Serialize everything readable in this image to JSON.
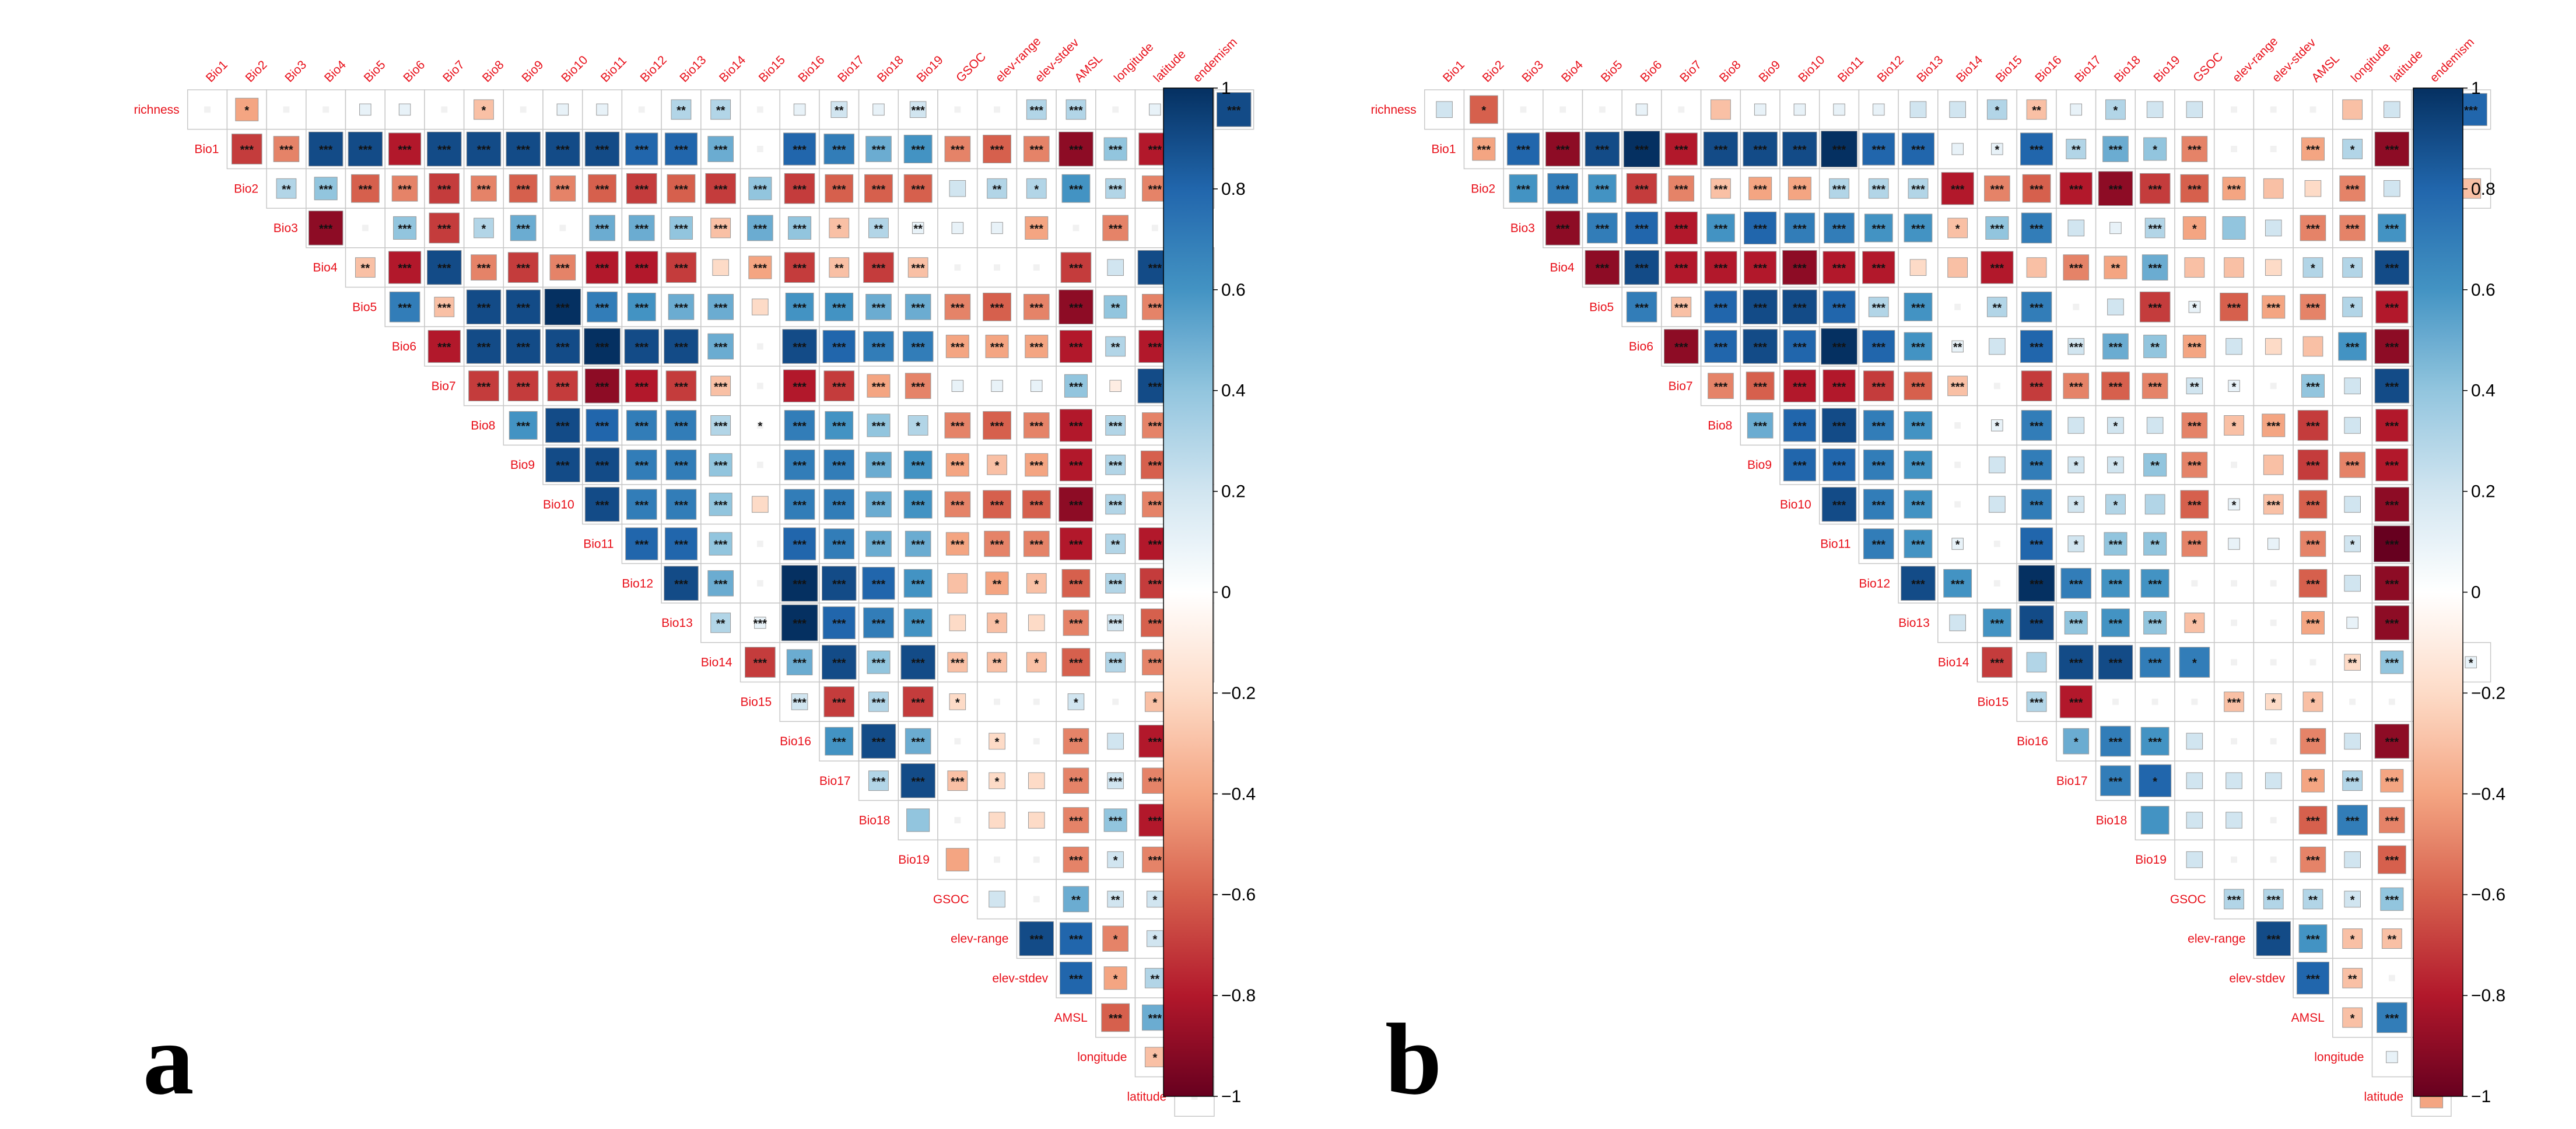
{
  "chart_data": [
    {
      "type": "heatmap",
      "panel_label": "a",
      "variables": [
        "richness",
        "Bio1",
        "Bio2",
        "Bio3",
        "Bio4",
        "Bio5",
        "Bio6",
        "Bio7",
        "Bio8",
        "Bio9",
        "Bio10",
        "Bio11",
        "Bio12",
        "Bio13",
        "Bio14",
        "Bio15",
        "Bio16",
        "Bio17",
        "Bio18",
        "Bio19",
        "GSOC",
        "elev-range",
        "elev-stdev",
        "AMSL",
        "longitude",
        "latitude",
        "endemism"
      ],
      "colorbar": {
        "min": -1,
        "max": 1,
        "ticks": [
          "1",
          "0.8",
          "0.6",
          "0.4",
          "0.2",
          "0",
          "−0.2",
          "−0.4",
          "−0.6",
          "−0.8",
          "−1"
        ]
      },
      "matrix": [
        "0.0 -0.4* 0.0 0.0 0.1 0.1 0.0 -0.3* 0.0 0.1 0.1 0.0 0.3** 0.3** 0.0 0.1 0.2** 0.1 0.2*** 0.0 0.0 0.3*** 0.3*** 0.0 0.1 0.1 0.9***",
        "-0.7*** -0.5*** 0.9*** 0.9*** -0.8*** 0.9*** 0.9*** 0.9*** 0.9*** 0.9*** 0.8*** 0.8*** 0.5*** 0.0 0.8*** 0.7*** 0.5*** 0.6*** -0.5*** -0.6*** -0.5*** -0.9*** 0.4*** -0.8*** 0.0",
        "0.3** 0.4*** -0.6*** -0.5*** -0.7*** -0.5*** -0.6*** -0.5*** -0.6*** -0.7*** -0.6*** -0.7*** 0.4*** -0.7*** -0.6*** -0.6*** -0.6*** 0.2 0.3** 0.3* 0.6*** 0.3*** -0.5*** -0.3*",
        "-0.9*** 0.0 0.4*** -0.7*** 0.3* 0.5*** 0.0 0.5*** 0.5*** 0.4*** -0.3*** 0.5*** 0.4*** -0.3* 0.3** 0.1** 0.1 0.1 -0.4*** 0.0 -0.5*** 0.0",
        "-0.3** -0.8*** 0.9*** -0.5*** -0.7*** -0.5*** -0.8*** -0.8*** -0.7*** -0.2 -0.4*** -0.7*** -0.3** -0.7*** -0.3*** 0.0 0.0 0.0 -0.7*** 0.2 0.9*** -0.2*",
        "0.7*** -0.3*** 0.9*** 0.9*** 1.0*** 0.7*** 0.6*** 0.5*** 0.5*** -0.2 0.6*** 0.6*** 0.5*** 0.5*** -0.5*** -0.6*** -0.5*** -0.9*** 0.4** -0.5*** 0.0",
        "-0.8*** 0.9*** 0.9*** 0.9*** 1.0*** 0.9*** 0.9*** 0.5*** 0.0 0.9*** 0.8*** 0.7*** 0.7*** -0.4*** -0.4*** -0.4*** -0.8*** 0.3** -0.8*** 0.0",
        "-0.7*** -0.7*** -0.7*** -0.9*** -0.8*** -0.7*** -0.3*** 0.0 -0.8*** -0.7*** -0.4*** -0.5*** 0.1 0.1 0.1 0.4*** -0.1 0.9*** -0.3**",
        "0.6*** 0.9*** 0.8*** 0.7*** 0.7*** 0.3*** 0.0* 0.7*** 0.6*** 0.4*** 0.3* -0.5*** -0.6*** -0.5*** -0.8*** 0.3*** -0.5*** 0.0",
        "0.9*** 0.9*** 0.7*** 0.7*** 0.4*** 0.0 0.7*** 0.7*** 0.5*** 0.6*** -0.4*** -0.3* -0.4*** -0.8*** 0.3*** -0.6*** 0.0",
        "0.9*** 0.7*** 0.7*** 0.4*** -0.2 0.7*** 0.7*** 0.5*** 0.6*** -0.5*** -0.6*** -0.6*** -0.9*** 0.3*** -0.5*** 0.0",
        "0.8*** 0.8*** 0.4*** 0.0 0.8*** 0.7*** 0.5*** 0.5*** -0.4*** -0.5*** -0.5*** -0.8*** 0.3** -0.8*** 0.0",
        "0.9*** 0.5*** 0.0 1.0*** 0.9*** 0.8*** 0.6*** -0.3 -0.4** -0.3* -0.6*** 0.3*** -0.7*** 0.9***",
        "0.3** 0.1*** 1.0*** 0.8*** 0.7*** 0.6*** -0.2 -0.3* -0.2 -0.5*** 0.2*** -0.6*** 0.9***",
        "-0.7*** 0.5*** 0.9*** 0.4*** 0.9*** -0.3*** -0.3** -0.3* -0.6*** 0.3*** -0.5*** 0.0",
        "0.2*** -0.7*** 0.3*** -0.7*** -0.2* 0.0 0.0 0.2* 0.0 -0.3*",
        "0.6*** 0.9*** 0.5*** 0.0 -0.2* 0.0 -0.5*** 0.2 -0.8*** 0.9***",
        "0.3*** 0.9*** -0.3*** -0.2* -0.2 -0.5*** 0.2*** -0.5*** 0.1",
        "0.4 0.0 -0.2 -0.2 -0.5*** 0.4*** -0.8*** 0.9***",
        "-0.4 0.0 0.0 -0.5*** 0.2* -0.5*** 0.0",
        "0.2 0.0 0.5** 0.2** 0.2* 0.0",
        "0.9*** 0.8*** -0.5* 0.2* 0.3***",
        "0.8*** -0.4* 0.3** 0.3***",
        "-0.6*** 0.5*** 0.0",
        "-0.3* 0.0",
        "0.0"
      ]
    },
    {
      "type": "heatmap",
      "panel_label": "b",
      "variables": [
        "richness",
        "Bio1",
        "Bio2",
        "Bio3",
        "Bio4",
        "Bio5",
        "Bio6",
        "Bio7",
        "Bio8",
        "Bio9",
        "Bio10",
        "Bio11",
        "Bio12",
        "Bio13",
        "Bio14",
        "Bio15",
        "Bio16",
        "Bio17",
        "Bio18",
        "Bio19",
        "GSOC",
        "elev-range",
        "elev-stdev",
        "AMSL",
        "longitude",
        "latitude",
        "endemism"
      ],
      "colorbar": {
        "min": -1,
        "max": 1,
        "ticks": [
          "1",
          "0.8",
          "0.6",
          "0.4",
          "0.2",
          "0",
          "−0.2",
          "−0.4",
          "−0.6",
          "−0.8",
          "−1"
        ]
      },
      "matrix": [
        "0.2 -0.6* 0.0 0.0 0.0 0.1 0.0 -0.3 0.1 0.1 0.1 0.1 0.2 0.2 0.3* -0.3** 0.1 0.3* 0.2 0.2 0.0 0.0 0.0 -0.3 0.2 -0.3 0.8***",
        "-0.4*** 0.8*** -0.9*** 0.9*** 1.0*** -0.8*** 0.9*** 0.9*** 0.9*** 1.0*** 0.8*** 0.8*** 0.1 0.1* 0.8*** 0.3** 0.5*** 0.4* -0.5*** 0.0 0.0 -0.4*** 0.3* -0.9*** 0.2",
        "0.6*** 0.7*** 0.6*** -0.7*** -0.5*** -0.3*** -0.4*** -0.4*** 0.3*** 0.3*** 0.3*** -0.8*** -0.5*** -0.6*** -0.8*** -0.9*** -0.7*** -0.6*** -0.4*** -0.3 -0.2 -0.5*** 0.2 0.6*** -0.3",
        "-0.9*** 0.7*** 0.8*** -0.8*** 0.6*** 0.8*** 0.7*** 0.7*** 0.6*** 0.6*** -0.3* 0.4*** 0.7*** 0.2 0.1 0.3*** -0.4* 0.4 0.2 -0.5*** -0.5*** 0.6*** -0.2",
        "-0.9*** 0.9*** -0.8*** -0.8*** -0.8*** -0.9*** -0.8*** -0.8*** -0.2 -0.3 -0.8*** -0.3 -0.5*** -0.4** 0.5*** -0.3 -0.3 -0.2 0.3* 0.3* 0.9*** -0.3",
        "0.7*** -0.3*** 0.8*** 0.9*** 0.9*** 0.8*** 0.3*** 0.6*** 0.0 0.3** 0.7*** 0.0 0.2 -0.7*** 0.1* -0.6*** -0.4*** -0.5*** 0.3* -0.8*** 0.2",
        "-0.9*** 0.8*** 0.9*** 0.8*** 1.0*** 0.8*** 0.6*** 0.1** 0.2 0.8*** 0.2*** 0.5*** 0.4** -0.4*** 0.2 -0.2 -0.3 0.6*** -0.9*** 0.2",
        "-0.5*** -0.6*** -0.8*** -0.8*** -0.7*** -0.6*** -0.3*** 0.0 -0.7*** -0.5*** -0.6*** -0.5*** 0.2** 0.1* 0.0 0.4*** 0.2 0.9*** -0.3",
        "0.5*** 0.8*** 0.9*** 0.7*** 0.6*** 0.0 0.1* 0.7*** 0.2 0.2* 0.2 -0.5*** -0.3* -0.4*** -0.7*** 0.2 -0.8*** 0.1",
        "0.8*** 0.8*** 0.7*** 0.6*** 0.0 0.2 0.7*** 0.2* 0.2* 0.4** -0.5*** 0.0 -0.3 -0.7*** -0.5*** -0.8*** 0.1",
        "0.9*** 0.7*** 0.6*** 0.0 0.2 0.7*** 0.2* 0.3* 0.3 -0.6*** 0.1* -0.3*** -0.6*** 0.2 -0.9*** 0.1",
        "0.7*** 0.6*** 0.1* 0.0 0.8*** 0.2* 0.4*** 0.4** -0.5*** 0.1 0.1 -0.5*** 0.2* -1.0*** 0.1",
        "0.9*** 0.6*** 0.0 1.0*** 0.7*** 0.6*** 0.6*** 0.0 0.0 0.0 -0.6*** 0.2 -0.9*** 0.6",
        "0.2 0.6*** 0.9*** 0.4*** 0.6*** 0.4*** -0.3* 0.0 0.0 -0.4*** 0.1 -0.9*** 0.1",
        "-0.7*** 0.3 0.9*** 0.9*** 0.7*** 0.7* 0.0 0.0 0.0 -0.2** 0.4*** -0.2** 0.1*",
        "0.3*** -0.8*** 0.0 0.0 0.0 -0.3*** -0.2* -0.3* 0.0 0.0 0.1*",
        "0.5* 0.7*** 0.6*** 0.2 0.0 0.0 -0.5*** 0.2 -0.9*** 0.2",
        "0.7*** 0.8* 0.2 0.2 0.2 -0.4** 0.3*** -0.4*** 0.1*",
        "0.6 0.2 0.2 0.0 -0.6*** 0.7*** -0.5*** 0.2",
        "0.2 0.0 0.0 -0.5*** 0.2 -0.6*** 0.1",
        "0.3*** 0.3*** 0.3** 0.2* 0.4*** 0.1",
        "0.9*** 0.6*** -0.3* -0.3** 0.1",
        "0.8*** -0.3** 0.0",
        "-0.3* 0.7*** 0.0",
        "0.1 0.0",
        "-0.4"
      ]
    }
  ]
}
